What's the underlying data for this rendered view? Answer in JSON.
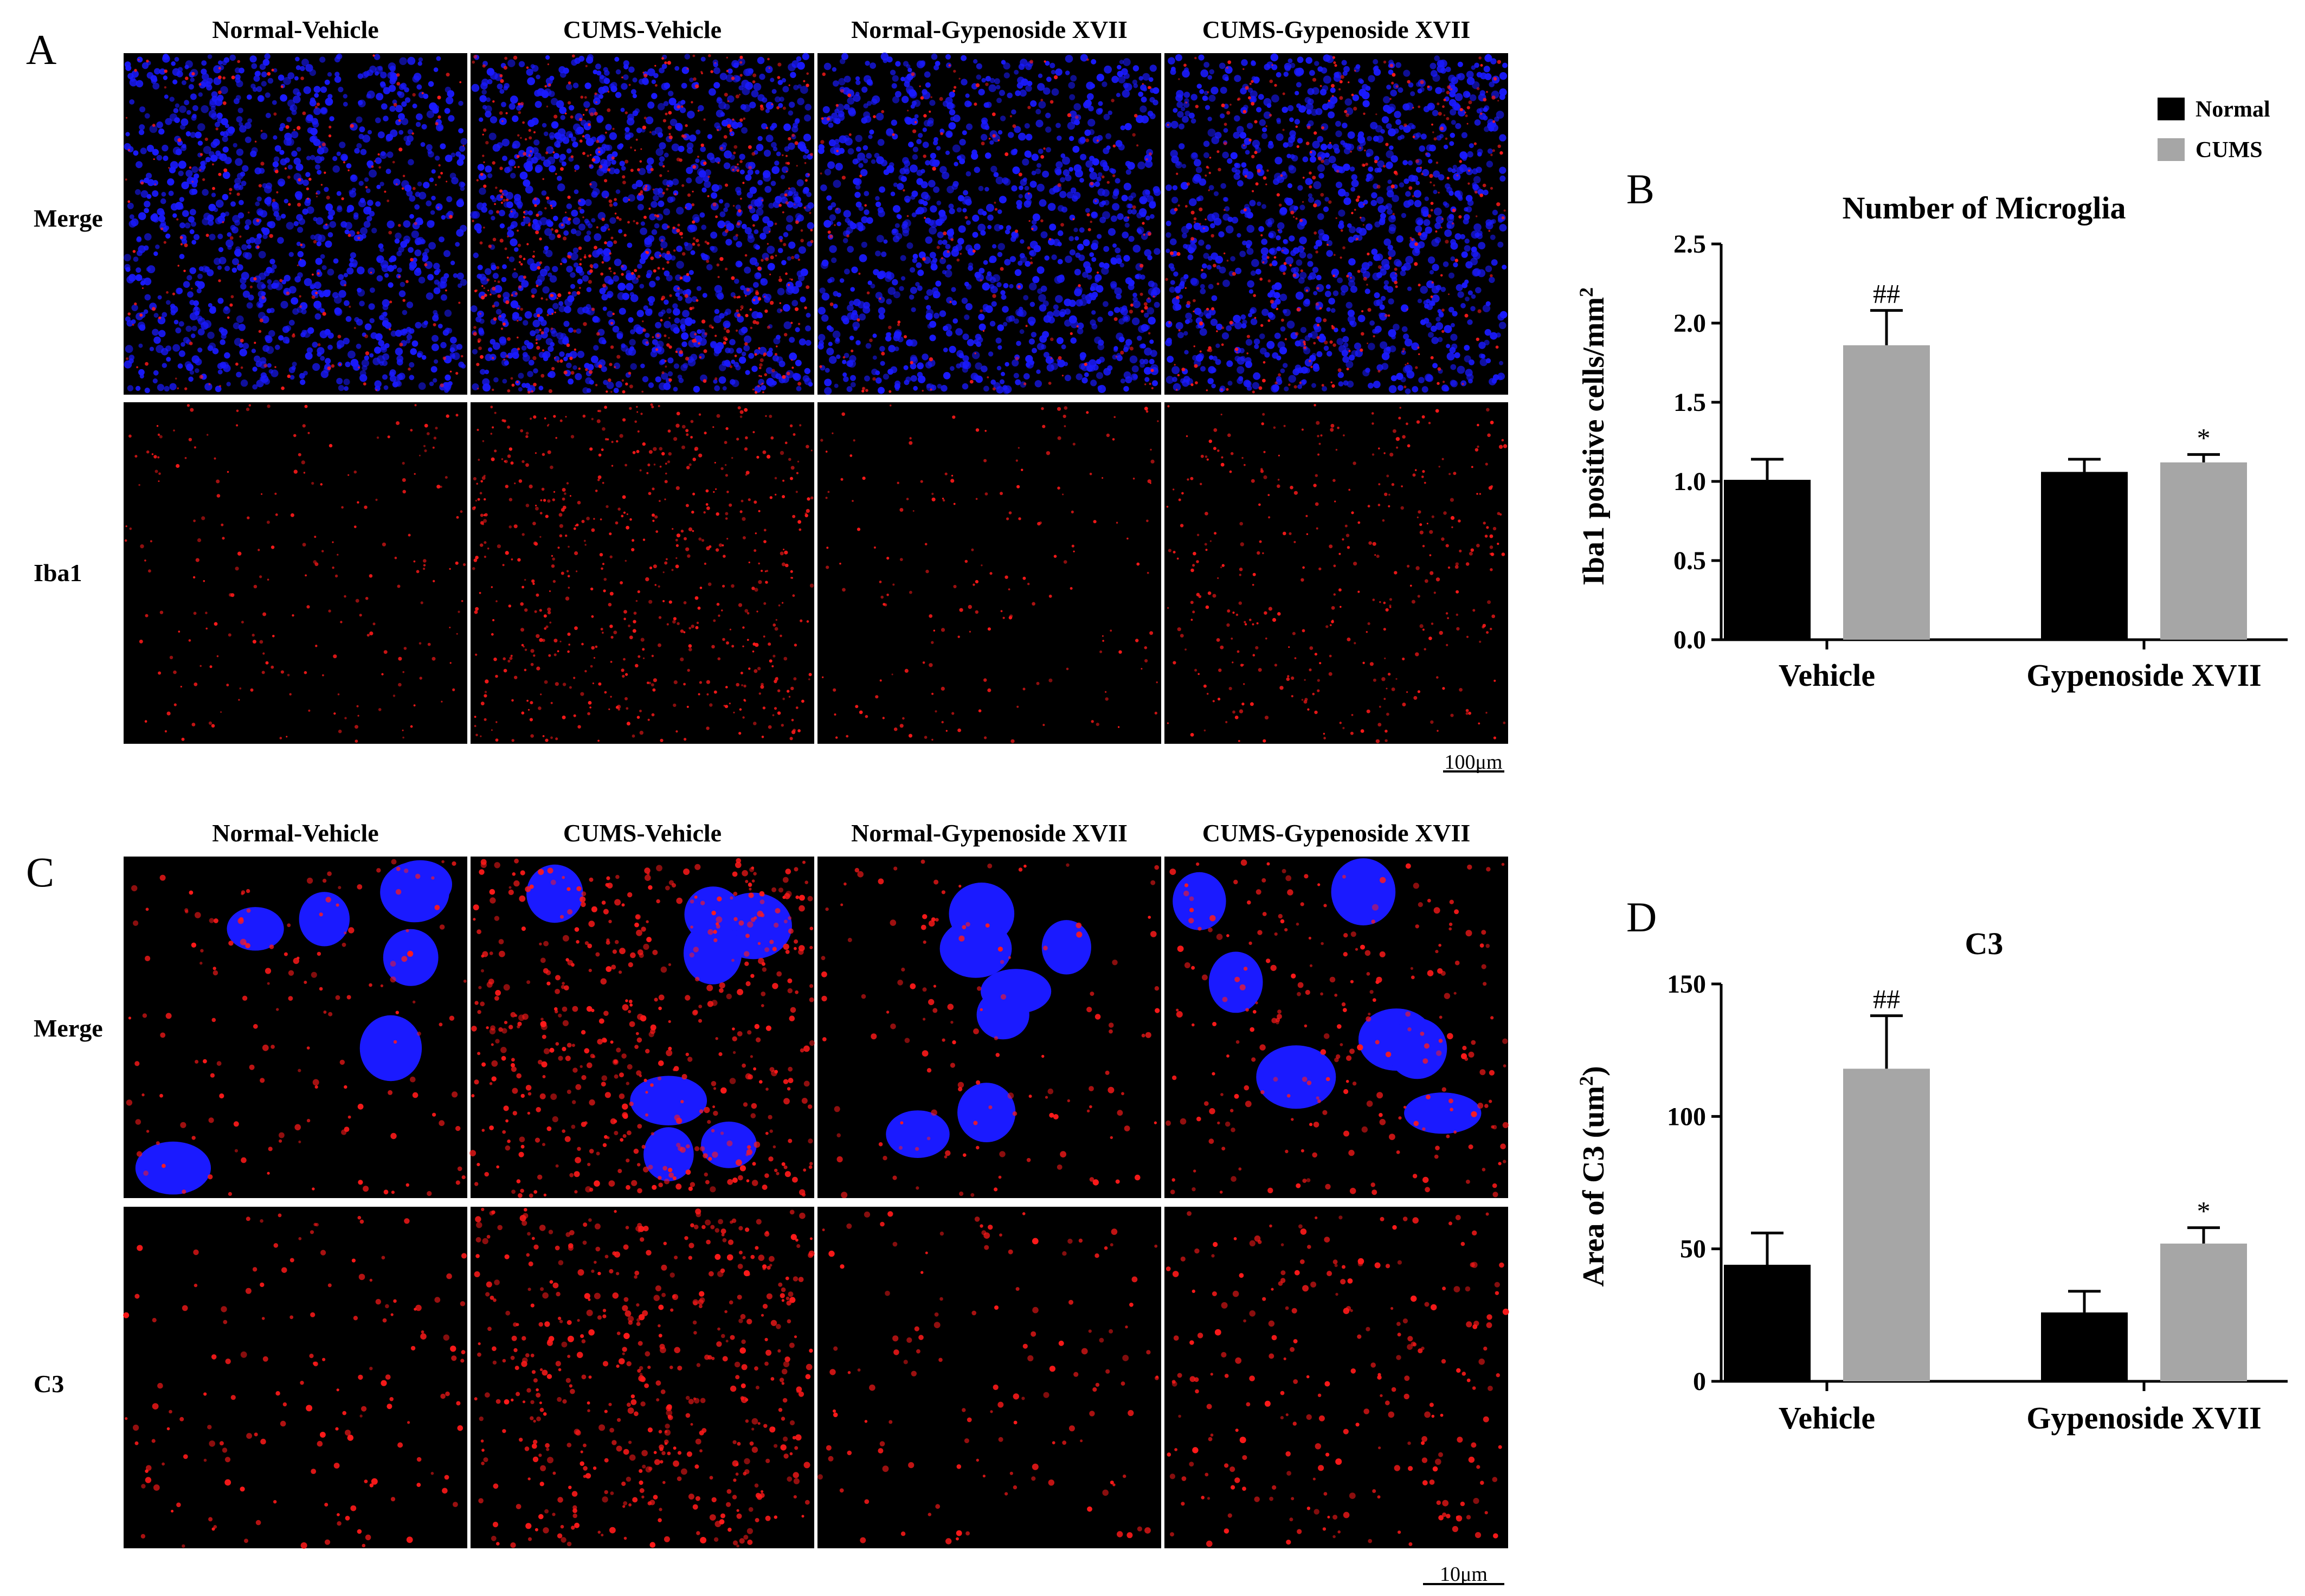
{
  "figure": {
    "panel_a": {
      "letter": "A",
      "column_titles": [
        "Normal-Vehicle",
        "CUMS-Vehicle",
        "Normal-Gypenoside XVII",
        "CUMS-Gypenoside XVII"
      ],
      "row_labels": [
        "Merge",
        "Iba1"
      ],
      "scale_bar": "100μm"
    },
    "panel_c": {
      "letter": "C",
      "column_titles": [
        "Normal-Vehicle",
        "CUMS-Vehicle",
        "Normal-Gypenoside XVII",
        "CUMS-Gypenoside XVII"
      ],
      "row_labels": [
        "Merge",
        "C3"
      ],
      "scale_bar": "10μm"
    },
    "legend": {
      "entries": [
        {
          "label": "Normal",
          "color": "#000000"
        },
        {
          "label": "CUMS",
          "color": "#a6a6a6"
        }
      ]
    },
    "colors": {
      "nuclei": "#1a1aff",
      "marker": "#ff1a1a",
      "background": "#000000"
    }
  },
  "chart_data": [
    {
      "panel": "B",
      "type": "bar",
      "title": "Number of Microglia",
      "ylabel": "Iba1 positive cells/mm",
      "ylabel_superscript": "2",
      "categories": [
        "Vehicle",
        "Gypenoside XVII"
      ],
      "ylim": [
        0,
        2.5
      ],
      "yticks": [
        "0.0",
        "0.5",
        "1.0",
        "1.5",
        "2.0",
        "2.5"
      ],
      "series": [
        {
          "name": "Normal",
          "values": [
            1.01,
            1.06
          ],
          "errors": [
            0.13,
            0.08
          ],
          "marks": [
            "",
            ""
          ]
        },
        {
          "name": "CUMS",
          "values": [
            1.86,
            1.12
          ],
          "errors": [
            0.22,
            0.05
          ],
          "marks": [
            "##",
            "*"
          ]
        }
      ]
    },
    {
      "panel": "D",
      "type": "bar",
      "title": "C3",
      "ylabel": "Area of C3 (um",
      "ylabel_superscript": "2",
      "ylabel_suffix": ")",
      "categories": [
        "Vehicle",
        "Gypenoside XVII"
      ],
      "ylim": [
        0,
        150
      ],
      "yticks": [
        "0",
        "50",
        "100",
        "150"
      ],
      "series": [
        {
          "name": "Normal",
          "values": [
            44,
            26
          ],
          "errors": [
            12,
            8
          ],
          "marks": [
            "",
            ""
          ]
        },
        {
          "name": "CUMS",
          "values": [
            118,
            52
          ],
          "errors": [
            20,
            6
          ],
          "marks": [
            "##",
            "*"
          ]
        }
      ]
    }
  ]
}
